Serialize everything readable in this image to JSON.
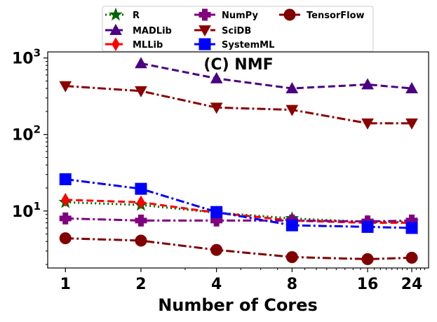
{
  "chart_data": {
    "type": "line",
    "title": "(C) NMF",
    "xlabel": "Number of Cores",
    "ylabel": "",
    "x_scale": "log",
    "y_scale": "log",
    "x": [
      1,
      2,
      4,
      8,
      16,
      24
    ],
    "x_tick_labels": [
      "1",
      "2",
      "4",
      "8",
      "16",
      "24"
    ],
    "y_ticks": [
      {
        "value": 10,
        "base": "10",
        "exp": "1"
      },
      {
        "value": 100,
        "base": "10",
        "exp": "2"
      },
      {
        "value": 1000,
        "base": "10",
        "exp": "3"
      }
    ],
    "ylim": [
      1.8,
      1200
    ],
    "legend_position": "top",
    "series": [
      {
        "name": "R",
        "color": "#006400",
        "marker": "star",
        "dash": "dotted",
        "values": [
          13,
          12,
          9.5,
          8,
          7.2,
          7.2
        ]
      },
      {
        "name": "MADLib",
        "color": "#4b0082",
        "marker": "triangle-up",
        "dash": "dashed",
        "values": [
          null,
          850,
          540,
          400,
          450,
          400
        ]
      },
      {
        "name": "MLLib",
        "color": "#ff0000",
        "marker": "diamond",
        "dash": "dashed",
        "values": [
          14,
          13,
          9.5,
          7.5,
          7,
          7
        ]
      },
      {
        "name": "NumPy",
        "color": "#800080",
        "marker": "plus",
        "dash": "dashdot",
        "values": [
          8,
          7.5,
          7.5,
          7.5,
          7.3,
          7.5
        ]
      },
      {
        "name": "SciDB",
        "color": "#8b0000",
        "marker": "triangle-down",
        "dash": "dashdot",
        "values": [
          430,
          370,
          225,
          210,
          140,
          140
        ]
      },
      {
        "name": "SystemML",
        "color": "#0000ff",
        "marker": "square",
        "dash": "dashdot",
        "values": [
          26,
          19.5,
          9.7,
          6.5,
          6.2,
          6
        ]
      },
      {
        "name": "TensorFlow",
        "color": "#800000",
        "marker": "circle",
        "dash": "dashdot",
        "values": [
          4.4,
          4.1,
          3.1,
          2.5,
          2.35,
          2.45
        ]
      }
    ]
  }
}
